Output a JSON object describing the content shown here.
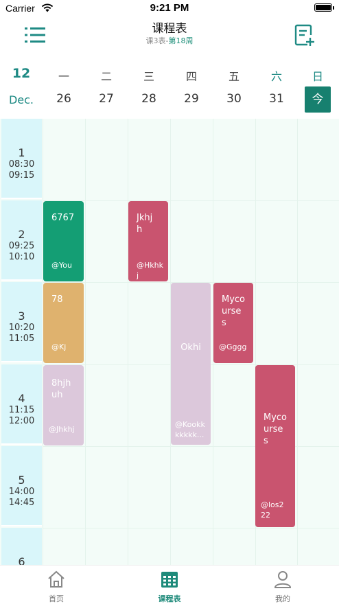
{
  "status_bar": {
    "carrier": "Carrier",
    "time": "9:21 PM"
  },
  "nav": {
    "title": "课程表",
    "subtitle_table": "课3表",
    "subtitle_sep": "-",
    "subtitle_week": "第18周",
    "menu_icon": "list-icon",
    "add_icon": "add-document-icon"
  },
  "header": {
    "month_number": "12",
    "month_name": "Dec.",
    "days": [
      {
        "weekday": "一",
        "date": "26"
      },
      {
        "weekday": "二",
        "date": "27"
      },
      {
        "weekday": "三",
        "date": "28"
      },
      {
        "weekday": "四",
        "date": "29"
      },
      {
        "weekday": "五",
        "date": "30"
      },
      {
        "weekday": "六",
        "date": "31"
      },
      {
        "weekday": "日",
        "date": "今"
      }
    ]
  },
  "periods": [
    {
      "num": "1",
      "start": "08:30",
      "end": "09:15"
    },
    {
      "num": "2",
      "start": "09:25",
      "end": "10:10"
    },
    {
      "num": "3",
      "start": "10:20",
      "end": "11:05"
    },
    {
      "num": "4",
      "start": "11:15",
      "end": "12:00"
    },
    {
      "num": "5",
      "start": "14:00",
      "end": "14:45"
    },
    {
      "num": "6",
      "start": "",
      "end": ""
    }
  ],
  "courses": [
    {
      "name": "6767",
      "location": "@You",
      "day": "一",
      "periods": "2",
      "color": "#149e74"
    },
    {
      "name": "Jkhjh",
      "location": "@Hkhkj",
      "day": "三",
      "periods": "2",
      "color": "#c9546f"
    },
    {
      "name": "78",
      "location": "@Kj",
      "day": "一",
      "periods": "3",
      "color": "#dfb26e"
    },
    {
      "name": "Okhi",
      "location": "@Kookkkkkkk...",
      "day": "四",
      "periods": "3-4",
      "color": "#dcc8db"
    },
    {
      "name": "Mycourses",
      "location": "@Gggg",
      "day": "五",
      "periods": "3",
      "color": "#c9546f"
    },
    {
      "name": "8hjhuh",
      "location": "@Jhkhj",
      "day": "一",
      "periods": "4",
      "color": "#dcc8db"
    },
    {
      "name": "Mycourses",
      "location": "@los222",
      "day": "六",
      "periods": "4-5",
      "color": "#c9546f"
    }
  ],
  "tabs": [
    {
      "label": "首页",
      "icon": "home-icon"
    },
    {
      "label": "课程表",
      "icon": "calendar-icon"
    },
    {
      "label": "我的",
      "icon": "person-icon"
    }
  ],
  "colors": {
    "accent": "#17806f",
    "slot_bg": "#d9f6fa",
    "grid_bg": "#f3fcf8"
  }
}
